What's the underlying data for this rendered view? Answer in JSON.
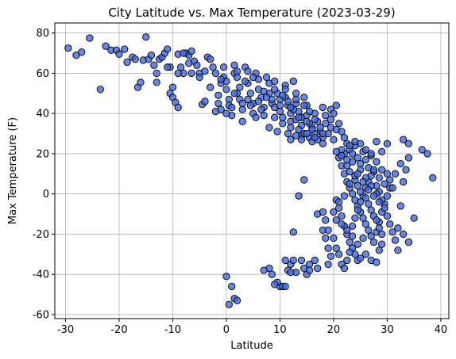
{
  "chart_data": {
    "type": "scatter",
    "title": "City Latitude vs. Max Temperature (2023-03-29)",
    "xlabel": "Latitude",
    "ylabel": "Max Temperature (F)",
    "xlim": [
      -32,
      41.5
    ],
    "ylim": [
      -62,
      85
    ],
    "xticks": [
      "-30",
      "-20",
      "-10",
      "0",
      "10",
      "20",
      "30",
      "40"
    ],
    "yticks": [
      "-60",
      "-40",
      "-20",
      "0",
      "20",
      "40",
      "60",
      "80"
    ],
    "grid": true,
    "marker_color": "#4169e1",
    "marker_edge_color": "#000000",
    "points": [
      [
        -29.5,
        72.5
      ],
      [
        -28,
        69
      ],
      [
        -27,
        70.5
      ],
      [
        -25.5,
        77.5
      ],
      [
        -23.5,
        52
      ],
      [
        -22.5,
        73.5
      ],
      [
        -21.5,
        71.5
      ],
      [
        -20.5,
        71.5
      ],
      [
        -20,
        69.5
      ],
      [
        -19,
        72
      ],
      [
        -18.5,
        65.5
      ],
      [
        -17.5,
        68
      ],
      [
        -17,
        67
      ],
      [
        -16.5,
        53
      ],
      [
        -16,
        55.5
      ],
      [
        -15.5,
        66.5
      ],
      [
        -15,
        78
      ],
      [
        -14.5,
        67
      ],
      [
        -14,
        69
      ],
      [
        -13.5,
        64
      ],
      [
        -13,
        55.5
      ],
      [
        -12.5,
        67
      ],
      [
        -12,
        68
      ],
      [
        -11.5,
        70
      ],
      [
        -11,
        72
      ],
      [
        -10.5,
        63
      ],
      [
        -10.5,
        50
      ],
      [
        -10,
        53
      ],
      [
        -10,
        48
      ],
      [
        -9.5,
        45.5
      ],
      [
        -9,
        69.5
      ],
      [
        -8.5,
        63
      ],
      [
        -8,
        60
      ],
      [
        -7.5,
        70
      ],
      [
        -7,
        69
      ],
      [
        -6.5,
        71
      ],
      [
        -6,
        66
      ],
      [
        -5.5,
        64
      ],
      [
        -5,
        60
      ],
      [
        -4.5,
        44.5
      ],
      [
        -4,
        61
      ],
      [
        -3.5,
        68
      ],
      [
        -3,
        67
      ],
      [
        -2.5,
        63
      ],
      [
        -2,
        60
      ],
      [
        -1.5,
        45
      ],
      [
        -1.5,
        49
      ],
      [
        -1,
        55
      ],
      [
        -0.5,
        63
      ],
      [
        -0.5,
        58
      ],
      [
        0,
        56
      ],
      [
        0,
        52
      ],
      [
        0.5,
        47
      ],
      [
        0.5,
        44
      ],
      [
        1,
        43
      ],
      [
        1,
        39
      ],
      [
        1.5,
        64
      ],
      [
        1.5,
        60
      ],
      [
        2,
        58
      ],
      [
        2,
        50
      ],
      [
        2.5,
        47
      ],
      [
        3,
        42
      ],
      [
        3,
        36
      ],
      [
        3.5,
        63
      ],
      [
        4,
        61
      ],
      [
        4,
        55
      ],
      [
        4.5,
        50
      ],
      [
        5,
        45
      ],
      [
        5,
        40
      ],
      [
        5.5,
        60
      ],
      [
        6,
        57
      ],
      [
        6,
        52
      ],
      [
        6.5,
        48
      ],
      [
        7,
        43
      ],
      [
        7,
        39
      ],
      [
        7.5,
        58
      ],
      [
        8,
        55
      ],
      [
        8,
        50
      ],
      [
        8.5,
        45
      ],
      [
        9,
        43
      ],
      [
        9,
        38
      ],
      [
        9.5,
        50
      ],
      [
        10,
        47
      ],
      [
        10,
        41
      ],
      [
        10.5,
        35
      ],
      [
        11,
        54
      ],
      [
        11,
        48
      ],
      [
        11.5,
        44
      ],
      [
        12,
        40
      ],
      [
        12,
        36
      ],
      [
        12.5,
        56
      ],
      [
        13,
        50
      ],
      [
        13,
        45
      ],
      [
        13.5,
        41
      ],
      [
        14,
        38
      ],
      [
        14,
        34
      ],
      [
        14.5,
        48
      ],
      [
        15,
        44
      ],
      [
        15,
        39
      ],
      [
        15.5,
        35
      ],
      [
        16,
        33
      ],
      [
        16.5,
        40
      ],
      [
        17,
        36
      ],
      [
        17.5,
        31
      ],
      [
        18,
        43
      ],
      [
        18,
        28
      ],
      [
        18.5,
        35
      ],
      [
        19,
        30
      ],
      [
        19.5,
        42
      ],
      [
        20,
        27
      ],
      [
        -9,
        43
      ],
      [
        -8,
        70
      ],
      [
        -6.5,
        60
      ],
      [
        -4,
        46
      ],
      [
        -3,
        53
      ],
      [
        -2,
        41
      ],
      [
        -1,
        42
      ],
      [
        0,
        40
      ],
      [
        1.5,
        50
      ],
      [
        2.5,
        53
      ],
      [
        4,
        47
      ],
      [
        5.5,
        38
      ],
      [
        6.5,
        42
      ],
      [
        8,
        33
      ],
      [
        9,
        56
      ],
      [
        9.5,
        31
      ],
      [
        11,
        52
      ],
      [
        12,
        33
      ],
      [
        12.5,
        42
      ],
      [
        13,
        37
      ],
      [
        14,
        29
      ],
      [
        14.5,
        30
      ],
      [
        15.5,
        28
      ],
      [
        16,
        26
      ],
      [
        16.5,
        30
      ],
      [
        17,
        27
      ],
      [
        18,
        25
      ],
      [
        19.5,
        33
      ],
      [
        20,
        40
      ],
      [
        20.5,
        44
      ],
      [
        21,
        35
      ],
      [
        21.5,
        31
      ],
      [
        22,
        28
      ],
      [
        22.5,
        25
      ],
      [
        23,
        22
      ],
      [
        23.5,
        20
      ],
      [
        24,
        24
      ],
      [
        24.5,
        18
      ],
      [
        25,
        15
      ],
      [
        25.5,
        21
      ],
      [
        26,
        17
      ],
      [
        26.5,
        13
      ],
      [
        27,
        19
      ],
      [
        27.5,
        11
      ],
      [
        28,
        16
      ],
      [
        28.5,
        8
      ],
      [
        29,
        12
      ],
      [
        29.5,
        5
      ],
      [
        30,
        10
      ],
      [
        30.5,
        7
      ],
      [
        21,
        18
      ],
      [
        21.5,
        14
      ],
      [
        22,
        10
      ],
      [
        22.5,
        6
      ],
      [
        23,
        3
      ],
      [
        23.5,
        0
      ],
      [
        24,
        -3
      ],
      [
        24.5,
        -6
      ],
      [
        25,
        -9
      ],
      [
        25.5,
        -12
      ],
      [
        26,
        -15
      ],
      [
        26.5,
        -18
      ],
      [
        27,
        -21
      ],
      [
        27.5,
        -24
      ],
      [
        28,
        -19
      ],
      [
        28.5,
        -14
      ],
      [
        29,
        -9
      ],
      [
        29.5,
        -5
      ],
      [
        30,
        -1
      ],
      [
        30.5,
        3
      ],
      [
        20.5,
        -3
      ],
      [
        21,
        -7
      ],
      [
        21.5,
        -11
      ],
      [
        22,
        -16
      ],
      [
        22.5,
        -20
      ],
      [
        23,
        -24
      ],
      [
        23.5,
        -27
      ],
      [
        24,
        -30
      ],
      [
        24.5,
        -33
      ],
      [
        25,
        -32
      ],
      [
        26,
        -30
      ],
      [
        27,
        -33
      ],
      [
        28,
        -34
      ],
      [
        28.5,
        -28
      ],
      [
        29,
        -25
      ],
      [
        18,
        -18
      ],
      [
        18.5,
        -22
      ],
      [
        19,
        -27
      ],
      [
        19.5,
        -31
      ],
      [
        19,
        -35
      ],
      [
        17,
        -37
      ],
      [
        16.5,
        -33
      ],
      [
        15.5,
        -35
      ],
      [
        14.5,
        -37
      ],
      [
        14,
        -33
      ],
      [
        13,
        -39
      ],
      [
        12,
        -35
      ],
      [
        11.5,
        -38
      ],
      [
        11,
        -33
      ],
      [
        10,
        -46
      ],
      [
        9.5,
        -44
      ],
      [
        9,
        -45
      ],
      [
        8.5,
        -40
      ],
      [
        8,
        -37
      ],
      [
        10.5,
        -46
      ],
      [
        11,
        -46
      ],
      [
        12,
        -39
      ],
      [
        12.5,
        -19
      ],
      [
        13.5,
        -1
      ],
      [
        14.5,
        7
      ],
      [
        0,
        -41
      ],
      [
        0.5,
        -55
      ],
      [
        1,
        -46
      ],
      [
        1.5,
        -52
      ],
      [
        2,
        -53
      ],
      [
        7,
        -38
      ],
      [
        12.5,
        -33
      ],
      [
        15,
        -40
      ],
      [
        15.5,
        -38
      ],
      [
        17,
        -10
      ],
      [
        18,
        -9
      ],
      [
        18.5,
        -13
      ],
      [
        19,
        -18
      ],
      [
        20,
        -22
      ],
      [
        20.5,
        -27
      ],
      [
        21,
        -30
      ],
      [
        21.5,
        -35
      ],
      [
        22,
        -37
      ],
      [
        22.5,
        -33
      ],
      [
        23,
        -29
      ],
      [
        23.5,
        -16
      ],
      [
        24,
        -12
      ],
      [
        24.5,
        -8
      ],
      [
        25,
        -4
      ],
      [
        25.5,
        -1
      ],
      [
        26,
        3
      ],
      [
        26.5,
        6
      ],
      [
        27,
        9
      ],
      [
        27.5,
        12
      ],
      [
        28,
        4
      ],
      [
        28.5,
        1
      ],
      [
        29,
        -3
      ],
      [
        29.5,
        -7
      ],
      [
        30,
        -11
      ],
      [
        30.5,
        -15
      ],
      [
        31,
        -19
      ],
      [
        31.5,
        -23
      ],
      [
        32,
        -28
      ],
      [
        33,
        -20
      ],
      [
        34,
        -24
      ],
      [
        35,
        -12
      ],
      [
        32,
        -17
      ],
      [
        32.5,
        -6
      ],
      [
        33,
        6
      ],
      [
        33.5,
        12
      ],
      [
        34,
        18
      ],
      [
        33,
        27
      ],
      [
        34,
        25
      ],
      [
        36.5,
        22
      ],
      [
        37.5,
        20
      ],
      [
        38.5,
        8
      ],
      [
        31,
        3
      ],
      [
        31.5,
        10
      ],
      [
        32.5,
        15
      ],
      [
        30,
        25
      ],
      [
        29,
        21
      ],
      [
        28,
        26
      ],
      [
        27,
        20
      ],
      [
        26,
        22
      ],
      [
        25,
        25
      ],
      [
        24,
        26
      ],
      [
        23,
        24
      ],
      [
        22,
        20
      ],
      [
        21.5,
        22
      ],
      [
        22.5,
        14
      ],
      [
        23,
        11
      ],
      [
        24,
        7
      ],
      [
        24.5,
        4
      ],
      [
        25,
        1
      ],
      [
        26,
        -2
      ],
      [
        26.5,
        -5
      ],
      [
        27,
        -8
      ],
      [
        27.5,
        -11
      ],
      [
        28,
        -13
      ],
      [
        28.5,
        -17
      ],
      [
        29,
        -20
      ],
      [
        25.5,
        -22
      ],
      [
        24.5,
        -25
      ],
      [
        23.5,
        -21
      ],
      [
        22.5,
        -18
      ],
      [
        21.5,
        -15
      ],
      [
        20.5,
        -13
      ],
      [
        20,
        -9
      ],
      [
        21,
        -4
      ],
      [
        22,
        -1
      ],
      [
        23,
        5
      ],
      [
        24,
        9
      ],
      [
        25,
        12
      ],
      [
        26,
        8
      ],
      [
        27,
        4
      ],
      [
        28,
        0
      ],
      [
        28.5,
        -4
      ],
      [
        27.5,
        -1
      ],
      [
        26.5,
        2
      ],
      [
        25.5,
        6
      ],
      [
        24.5,
        10
      ],
      [
        23.5,
        16
      ],
      [
        22.5,
        17
      ],
      [
        21.5,
        19
      ],
      [
        20.5,
        21
      ],
      [
        10.5,
        38
      ],
      [
        11.5,
        30
      ],
      [
        13.5,
        32
      ],
      [
        14.5,
        44
      ],
      [
        15.5,
        41
      ],
      [
        16.5,
        37
      ],
      [
        17.5,
        33
      ],
      [
        18.5,
        39
      ],
      [
        19.5,
        37
      ],
      [
        20.5,
        32
      ],
      [
        12,
        27
      ],
      [
        13,
        29
      ],
      [
        14,
        27
      ],
      [
        15,
        30
      ],
      [
        16.5,
        28
      ],
      [
        18,
        30
      ],
      [
        -1,
        57
      ],
      [
        2,
        61
      ],
      [
        3.5,
        56
      ],
      [
        5,
        58
      ],
      [
        7,
        51
      ],
      [
        8.5,
        47
      ],
      [
        10,
        44
      ],
      [
        11.5,
        46
      ],
      [
        13,
        47
      ],
      [
        -5,
        58
      ],
      [
        -7,
        65
      ],
      [
        -9,
        60
      ],
      [
        -11,
        63
      ],
      [
        -13,
        60
      ],
      [
        3,
        45
      ],
      [
        4.5,
        44
      ],
      [
        6,
        46
      ],
      [
        7.5,
        48
      ],
      [
        9,
        52
      ],
      [
        10.5,
        49
      ],
      [
        12,
        43
      ],
      [
        13.5,
        38
      ],
      [
        15,
        36
      ],
      [
        16,
        32
      ]
    ]
  }
}
